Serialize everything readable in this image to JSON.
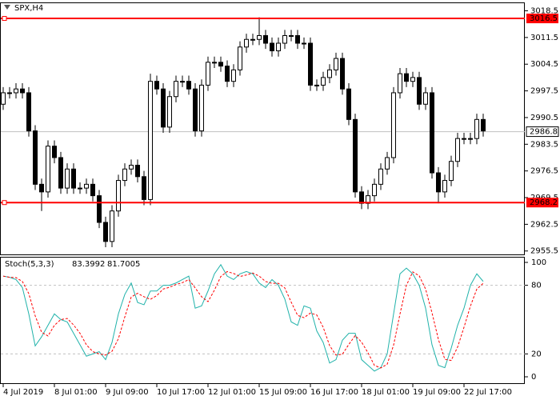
{
  "chart_data": [
    {
      "type": "candlestick",
      "title": "SPX,H4",
      "categories": [
        "4 Jul 2019",
        null,
        null,
        null,
        null,
        null,
        null,
        null,
        "8 Jul 01:00",
        null,
        null,
        null,
        null,
        null,
        null,
        null,
        "9 Jul 09:00",
        null,
        null,
        null,
        null,
        null,
        null,
        null,
        "10 Jul 17:00",
        null,
        null,
        null,
        null,
        null,
        null,
        null,
        "12 Jul 01:00",
        null,
        null,
        null,
        null,
        null,
        null,
        null,
        "15 Jul 09:00",
        null,
        null,
        null,
        null,
        null,
        null,
        null,
        "16 Jul 17:00",
        null,
        null,
        null,
        null,
        null,
        null,
        null,
        "18 Jul 01:00",
        null,
        null,
        null,
        null,
        null,
        null,
        null,
        "19 Jul 09:00",
        null,
        null,
        null,
        null,
        null,
        null,
        null,
        "22 Jul 17:00",
        null,
        null,
        null
      ],
      "open": [
        2994,
        2997,
        2997,
        2998,
        2997,
        2987,
        2973,
        2971,
        2983,
        2980,
        2972,
        2977,
        2972,
        2972,
        2973,
        2970,
        2963,
        2958,
        2966,
        2974,
        2977,
        2978,
        2975,
        2969,
        3000,
        2998,
        2988,
        2996,
        3000,
        3000,
        2998,
        2987,
        2999,
        3005,
        3005,
        3004,
        3000,
        3003,
        3009,
        3011,
        3011,
        3012,
        3010,
        3008,
        3010,
        3012,
        3012,
        3010,
        3010,
        2999,
        2999,
        3001,
        3003,
        3006,
        2998,
        2990,
        2971,
        2968,
        2970,
        2973,
        2977,
        2980,
        2997,
        3002,
        3000,
        3001,
        2994,
        2997,
        2976,
        2971,
        2974,
        2979,
        2985,
        2985,
        2985,
        2990
      ],
      "high": [
        2998.5,
        2998.5,
        2999.5,
        2999.5,
        2998.5,
        2988.5,
        2974.5,
        2984.5,
        2984.5,
        2981.5,
        2978.5,
        2978.5,
        2973.5,
        2974.5,
        2974.5,
        2971.5,
        2964.5,
        2967.5,
        2975.5,
        2978.5,
        2979.5,
        2979.5,
        2976.5,
        3002,
        3001.5,
        2999.5,
        2997.5,
        3001.5,
        3001.5,
        3001.5,
        2999.5,
        3000.5,
        3006.5,
        3006.5,
        3006.5,
        3005.5,
        3004.5,
        3010.5,
        3012.5,
        3012.5,
        3016.8,
        3013.5,
        3011.5,
        3011.5,
        3013.5,
        3013.5,
        3013.5,
        3011.5,
        3011.5,
        3000.5,
        3002.5,
        3004.5,
        3007.5,
        3007.5,
        2999.5,
        2991.5,
        2972.5,
        2971.5,
        2974.5,
        2978.5,
        2981.5,
        2998.5,
        3003.5,
        3003.5,
        3002.5,
        3002.5,
        2998.5,
        2998.5,
        2977.5,
        2975.5,
        2980.5,
        2986.5,
        2986.5,
        2986.5,
        2991.5,
        2991.5
      ],
      "low": [
        2992.5,
        2995.5,
        2995.5,
        2995.5,
        2985.5,
        2971.5,
        2966,
        2969.5,
        2978.5,
        2970.5,
        2970.5,
        2970.5,
        2970.5,
        2970.5,
        2968.5,
        2961.5,
        2956.5,
        2956.5,
        2964.5,
        2972.5,
        2975.5,
        2973.5,
        2967.5,
        2967.5,
        2996.5,
        2986.5,
        2986.5,
        2994.5,
        2998.5,
        2996.5,
        2985.5,
        2985.5,
        2997.5,
        3003.5,
        3002.5,
        2998.5,
        2998.5,
        3001.5,
        3007.5,
        3009.5,
        3009.5,
        3008.5,
        3006.5,
        3006.5,
        3008.5,
        3010.5,
        3008.5,
        3008.5,
        2997.5,
        2997.5,
        2997.5,
        2999.5,
        3001.5,
        2996.5,
        2988.5,
        2969.5,
        2966.5,
        2966.5,
        2968.5,
        2971.5,
        2975.5,
        2978.5,
        2995.5,
        2998.5,
        2998.5,
        2992.5,
        2992.5,
        2974.5,
        2968,
        2969.5,
        2972.5,
        2977.5,
        2983.5,
        2983.5,
        2983.5,
        2985.5
      ],
      "close": [
        2997,
        2997,
        2998,
        2997,
        2987,
        2973,
        2971,
        2983,
        2980,
        2972,
        2977,
        2972,
        2972,
        2973,
        2970,
        2963,
        2958,
        2966,
        2974,
        2977,
        2978,
        2975,
        2969,
        3000,
        2998,
        2988,
        2996,
        3000,
        3000,
        2998,
        2987,
        2999,
        3005,
        3005,
        3004,
        3000,
        3003,
        3009,
        3011,
        3011,
        3012,
        3010,
        3008,
        3010,
        3012,
        3012,
        3010,
        3010,
        2999,
        2999,
        3001,
        3003,
        3006,
        2998,
        2990,
        2971,
        2968,
        2970,
        2973,
        2977,
        2980,
        2997,
        3002,
        3000,
        3001,
        2994,
        2997,
        2976,
        2971,
        2974,
        2979,
        2985,
        2985,
        2985,
        2990,
        2987
      ],
      "bull_color": "#ffffff",
      "bear_color": "#000000",
      "ylim": [
        2954.5,
        3020.6
      ],
      "yticks": [
        3018.5,
        3011.5,
        3004.5,
        2997.5,
        2990.5,
        2983.5,
        2976.5,
        2969.5,
        2962.5,
        2955.5
      ],
      "hlines": [
        {
          "value": 3016.5,
          "color": "#ff0000"
        },
        {
          "value": 2968.2,
          "color": "#ff0000"
        }
      ],
      "last_price": 2986.8
    },
    {
      "type": "line",
      "title": "Stoch(5,3,3)",
      "series": [
        {
          "color": "#20b2aa",
          "values": [
            88,
            87,
            85,
            78,
            55,
            27,
            35,
            45,
            55,
            50,
            48,
            38,
            28,
            18,
            20,
            22,
            15,
            30,
            55,
            72,
            82,
            65,
            63,
            75,
            75,
            80,
            80,
            82,
            85,
            88,
            60,
            62,
            75,
            90,
            98,
            88,
            85,
            90,
            92,
            90,
            82,
            78,
            85,
            80,
            68,
            48,
            45,
            62,
            60,
            40,
            30,
            12,
            15,
            32,
            38,
            38,
            15,
            10,
            5,
            8,
            20,
            55,
            90,
            95,
            90,
            80,
            60,
            28,
            10,
            8,
            25,
            45,
            60,
            80,
            90,
            83.3992
          ]
        },
        {
          "color": "#ff0000",
          "dashed": true,
          "values": [
            88,
            87,
            86.7,
            83.3,
            72.7,
            53.3,
            39,
            35.7,
            45,
            50,
            51,
            45.3,
            38,
            28,
            22,
            20,
            19,
            22.3,
            33.3,
            52.3,
            69.7,
            73,
            70,
            67.7,
            71,
            76.7,
            78.3,
            80.7,
            82.3,
            85,
            77.7,
            70,
            65.7,
            75.7,
            87.7,
            92,
            90.3,
            87.7,
            89,
            90.7,
            88,
            83.3,
            81.7,
            81.7,
            77.7,
            65.3,
            53.7,
            51.7,
            55.7,
            54,
            43.3,
            27.3,
            19,
            19.7,
            28.3,
            36,
            30.3,
            21,
            10,
            7.7,
            11,
            27.7,
            55,
            80,
            91.7,
            88.3,
            76.7,
            56,
            32.7,
            15.3,
            14.3,
            26,
            43.3,
            61.7,
            76.7,
            81.7005
          ]
        }
      ],
      "ylim": [
        -5.6,
        104.2
      ],
      "yticks": [
        100,
        80,
        20,
        0
      ],
      "levels": [
        80,
        20
      ]
    }
  ]
}
